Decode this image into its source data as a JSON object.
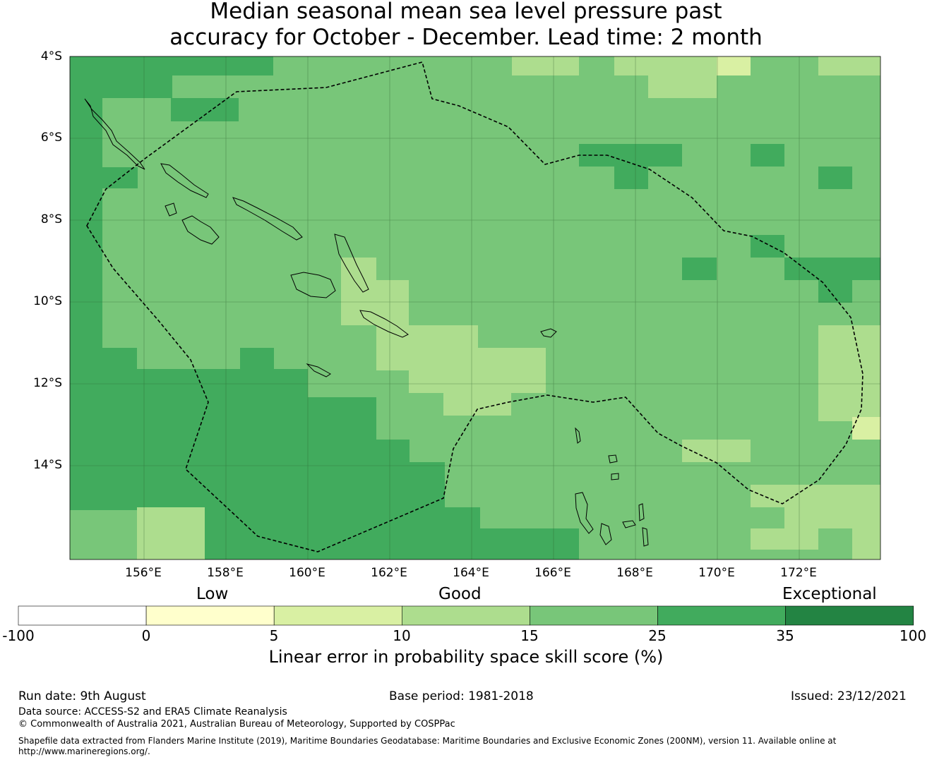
{
  "title_line1": "Median seasonal mean sea level pressure past",
  "title_line2": "accuracy for October - December. Lead time: 2 month",
  "map": {
    "lat_labels": [
      "4°S",
      "6°S",
      "8°S",
      "10°S",
      "12°S",
      "14°S"
    ],
    "lon_labels": [
      "156°E",
      "158°E",
      "160°E",
      "162°E",
      "164°E",
      "166°E",
      "168°E",
      "170°E",
      "172°E"
    ]
  },
  "colorbar": {
    "categories": [
      "Low",
      "Good",
      "Exceptional"
    ],
    "ticks": [
      "-100",
      "0",
      "5",
      "10",
      "15",
      "25",
      "35",
      "100"
    ],
    "colors": [
      "#ffffff",
      "#ffffcc",
      "#d9f0a3",
      "#addd8e",
      "#78c679",
      "#41ab5d",
      "#238443"
    ],
    "title": "Linear error in probability space skill score (%)"
  },
  "footer": {
    "run_date": "Run date: 9th August",
    "base_period": "Base period: 1981-2018",
    "issued": "Issued: 23/12/2021",
    "data_source": "Data source: ACCESS-S2 and ERA5 Climate Reanalysis",
    "copyright": "© Commonwealth of Australia 2021, Australian Bureau of Meteorology, Supported by COSPPac",
    "shapefile_line1": "Shapefile data extracted from Flanders Marine Institute (2019), Maritime Boundaries Geodatabase: Maritime Boundaries and Exclusive Economic Zones (200NM), version 11. Available online at",
    "shapefile_line2": "http://www.marineregions.org/."
  }
}
